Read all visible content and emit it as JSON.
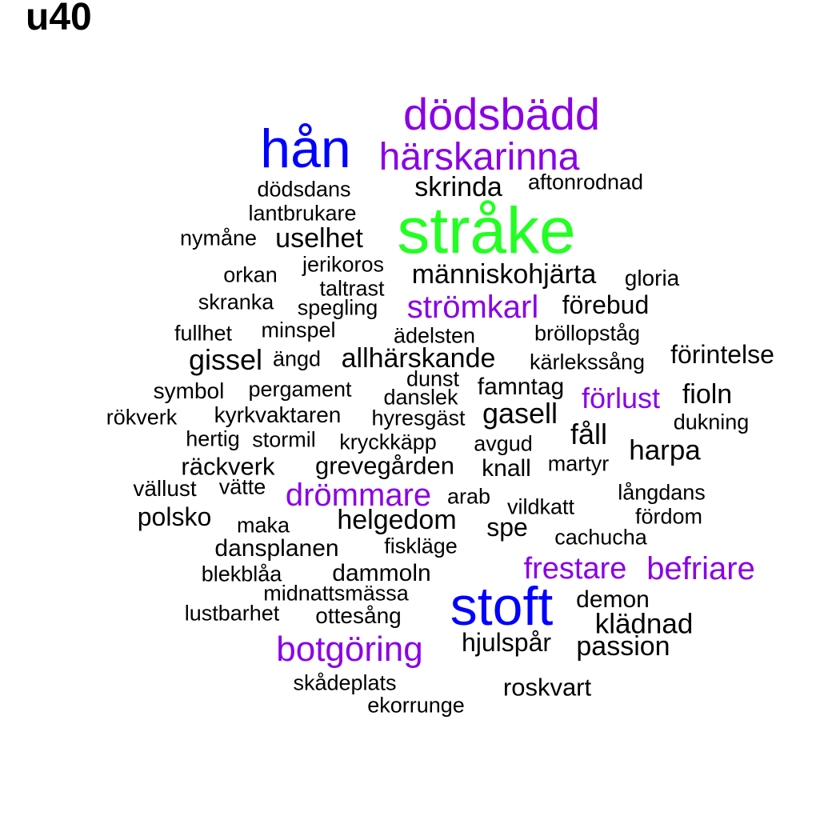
{
  "title": "u40",
  "colors": {
    "black": "#000000",
    "purple": "#8a00e6",
    "blue": "#0000ff",
    "green": "#22ff22"
  },
  "words": [
    {
      "text": "dödsbädd",
      "color": "purple",
      "weight": 4
    },
    {
      "text": "hån",
      "color": "blue",
      "weight": 6
    },
    {
      "text": "härskarinna",
      "color": "purple",
      "weight": 4
    },
    {
      "text": "skrinda",
      "color": "black",
      "weight": 2
    },
    {
      "text": "aftonrodnad",
      "color": "black",
      "weight": 1
    },
    {
      "text": "dödsdans",
      "color": "black",
      "weight": 1
    },
    {
      "text": "stråke",
      "color": "green",
      "weight": 8
    },
    {
      "text": "lantbrukare",
      "color": "black",
      "weight": 1
    },
    {
      "text": "nymåne",
      "color": "black",
      "weight": 1
    },
    {
      "text": "uselhet",
      "color": "black",
      "weight": 2
    },
    {
      "text": "jerikoros",
      "color": "black",
      "weight": 1
    },
    {
      "text": "orkan",
      "color": "black",
      "weight": 1
    },
    {
      "text": "människohjärta",
      "color": "black",
      "weight": 2
    },
    {
      "text": "gloria",
      "color": "black",
      "weight": 1
    },
    {
      "text": "taltrast",
      "color": "black",
      "weight": 1
    },
    {
      "text": "skranka",
      "color": "black",
      "weight": 1
    },
    {
      "text": "strömkarl",
      "color": "purple",
      "weight": 3
    },
    {
      "text": "förebud",
      "color": "black",
      "weight": 2
    },
    {
      "text": "spegling",
      "color": "black",
      "weight": 1
    },
    {
      "text": "fullhet",
      "color": "black",
      "weight": 1
    },
    {
      "text": "minspel",
      "color": "black",
      "weight": 1
    },
    {
      "text": "ädelsten",
      "color": "black",
      "weight": 1
    },
    {
      "text": "bröllopståg",
      "color": "black",
      "weight": 1
    },
    {
      "text": "gissel",
      "color": "black",
      "weight": 2
    },
    {
      "text": "ängd",
      "color": "black",
      "weight": 1
    },
    {
      "text": "allhärskande",
      "color": "black",
      "weight": 2
    },
    {
      "text": "kärlekssång",
      "color": "black",
      "weight": 1
    },
    {
      "text": "förintelse",
      "color": "black",
      "weight": 2
    },
    {
      "text": "dunst",
      "color": "black",
      "weight": 1
    },
    {
      "text": "symbol",
      "color": "black",
      "weight": 2
    },
    {
      "text": "pergament",
      "color": "black",
      "weight": 1
    },
    {
      "text": "famntag",
      "color": "black",
      "weight": 2
    },
    {
      "text": "fioln",
      "color": "black",
      "weight": 2
    },
    {
      "text": "danslek",
      "color": "black",
      "weight": 1
    },
    {
      "text": "förlust",
      "color": "purple",
      "weight": 3
    },
    {
      "text": "rökverk",
      "color": "black",
      "weight": 1
    },
    {
      "text": "kyrkvaktaren",
      "color": "black",
      "weight": 2
    },
    {
      "text": "hyresgäst",
      "color": "black",
      "weight": 1
    },
    {
      "text": "gasell",
      "color": "black",
      "weight": 2
    },
    {
      "text": "dukning",
      "color": "black",
      "weight": 1
    },
    {
      "text": "fåll",
      "color": "black",
      "weight": 2
    },
    {
      "text": "hertig",
      "color": "black",
      "weight": 1
    },
    {
      "text": "stormil",
      "color": "black",
      "weight": 1
    },
    {
      "text": "kryckkäpp",
      "color": "black",
      "weight": 1
    },
    {
      "text": "avgud",
      "color": "black",
      "weight": 1
    },
    {
      "text": "harpa",
      "color": "black",
      "weight": 2
    },
    {
      "text": "räckverk",
      "color": "black",
      "weight": 2
    },
    {
      "text": "grevegården",
      "color": "black",
      "weight": 2
    },
    {
      "text": "knall",
      "color": "black",
      "weight": 2
    },
    {
      "text": "martyr",
      "color": "black",
      "weight": 1
    },
    {
      "text": "vällust",
      "color": "black",
      "weight": 2
    },
    {
      "text": "vätte",
      "color": "black",
      "weight": 1
    },
    {
      "text": "drömmare",
      "color": "purple",
      "weight": 3
    },
    {
      "text": "arab",
      "color": "black",
      "weight": 1
    },
    {
      "text": "långdans",
      "color": "black",
      "weight": 1
    },
    {
      "text": "vildkatt",
      "color": "black",
      "weight": 1
    },
    {
      "text": "polsko",
      "color": "black",
      "weight": 2
    },
    {
      "text": "fördom",
      "color": "black",
      "weight": 1
    },
    {
      "text": "helgedom",
      "color": "black",
      "weight": 2
    },
    {
      "text": "maka",
      "color": "black",
      "weight": 1
    },
    {
      "text": "spe",
      "color": "black",
      "weight": 2
    },
    {
      "text": "cachucha",
      "color": "black",
      "weight": 1
    },
    {
      "text": "dansplanen",
      "color": "black",
      "weight": 2
    },
    {
      "text": "fiskläge",
      "color": "black",
      "weight": 1
    },
    {
      "text": "frestare",
      "color": "purple",
      "weight": 3
    },
    {
      "text": "befriare",
      "color": "purple",
      "weight": 3
    },
    {
      "text": "blekblåa",
      "color": "black",
      "weight": 1
    },
    {
      "text": "dammoln",
      "color": "black",
      "weight": 2
    },
    {
      "text": "midnattsmässa",
      "color": "black",
      "weight": 1
    },
    {
      "text": "stoft",
      "color": "blue",
      "weight": 6
    },
    {
      "text": "demon",
      "color": "black",
      "weight": 2
    },
    {
      "text": "lustbarhet",
      "color": "black",
      "weight": 1
    },
    {
      "text": "ottesång",
      "color": "black",
      "weight": 1
    },
    {
      "text": "klädnad",
      "color": "black",
      "weight": 2
    },
    {
      "text": "botgöring",
      "color": "purple",
      "weight": 4
    },
    {
      "text": "hjulspår",
      "color": "black",
      "weight": 2
    },
    {
      "text": "passion",
      "color": "black",
      "weight": 2
    },
    {
      "text": "skådeplats",
      "color": "black",
      "weight": 1
    },
    {
      "text": "roskvart",
      "color": "black",
      "weight": 2
    },
    {
      "text": "ekorrunge",
      "color": "black",
      "weight": 1
    }
  ]
}
